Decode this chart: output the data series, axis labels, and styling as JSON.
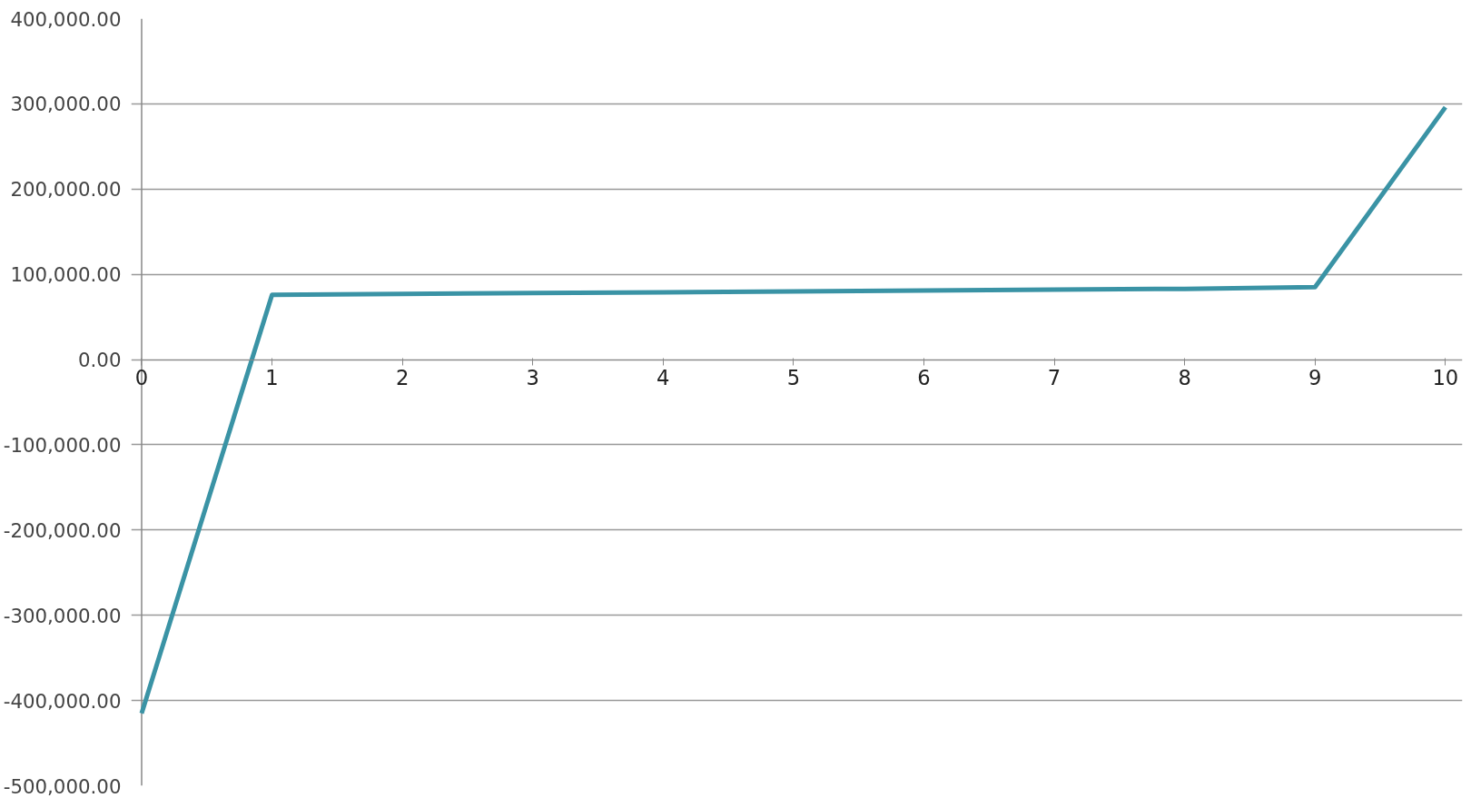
{
  "chart_data": {
    "type": "line",
    "x": [
      0,
      1,
      2,
      3,
      4,
      5,
      6,
      7,
      8,
      9,
      10
    ],
    "series": [
      {
        "color": "#3a93a5",
        "values": [
          -415000,
          76000,
          77000,
          78000,
          79000,
          80000,
          81000,
          82000,
          83000,
          85000,
          296000
        ]
      }
    ],
    "xlim": [
      0,
      10
    ],
    "xticks": [
      0,
      1,
      2,
      3,
      4,
      5,
      6,
      7,
      8,
      9,
      10
    ],
    "ylim": [
      -500000,
      400000
    ],
    "yticks": [
      {
        "value": -500000,
        "label": "-500,000.00"
      },
      {
        "value": -400000,
        "label": "-400,000.00"
      },
      {
        "value": -300000,
        "label": "-300,000.00"
      },
      {
        "value": -200000,
        "label": "-200,000.00"
      },
      {
        "value": -100000,
        "label": "-100,000.00"
      },
      {
        "value": 0,
        "label": "0.00"
      },
      {
        "value": 100000,
        "label": "100,000.00"
      },
      {
        "value": 200000,
        "label": "200,000.00"
      },
      {
        "value": 300000,
        "label": "300,000.00"
      },
      {
        "value": 400000,
        "label": "400,000.00"
      }
    ],
    "grid": "y",
    "marker": "none",
    "line_style": "solid"
  }
}
